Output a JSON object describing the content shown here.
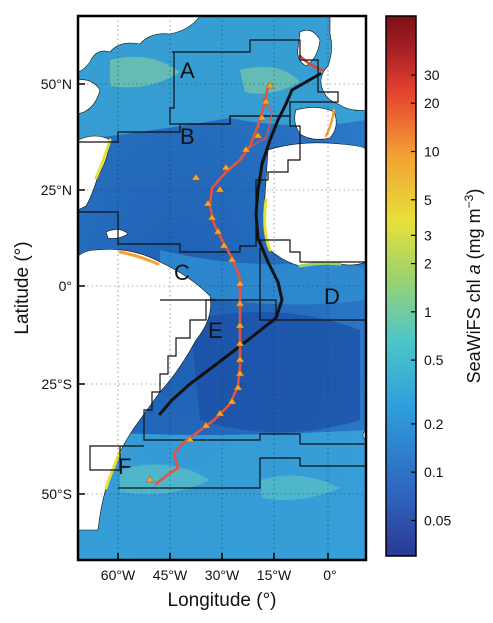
{
  "figure": {
    "xlabel": "Longitude (°)",
    "ylabel": "Latitude (°)",
    "x_ticks": [
      "60°W",
      "45°W",
      "30°W",
      "15°W",
      "0°"
    ],
    "y_ticks": [
      "50°N",
      "25°N",
      "0°",
      "25°S",
      "50°S"
    ],
    "regions": [
      "A",
      "B",
      "C",
      "D",
      "E",
      "F"
    ],
    "colorbar": {
      "label_prefix": "SeaWiFS chl ",
      "label_var": "a",
      "label_units": " (mg m",
      "label_exp": "−3",
      "label_close": ")",
      "ticks": [
        "30",
        "20",
        "10",
        "5",
        "3",
        "2",
        "1",
        "0.5",
        "0.2",
        "0.1",
        "0.05"
      ],
      "tick_values": [
        30,
        20,
        10,
        5,
        3,
        2,
        1,
        0.5,
        0.2,
        0.1,
        0.05
      ],
      "range": [
        0.03,
        70
      ],
      "scale": "log",
      "colors": [
        "#2a3a94",
        "#2f66c0",
        "#2fa0dc",
        "#4ec6c8",
        "#9fd36a",
        "#e7e03a",
        "#f3a234",
        "#e5412f",
        "#a51f24",
        "#7a1116"
      ]
    },
    "map_extent": {
      "lon": [
        -72,
        12
      ],
      "lat": [
        -68,
        72
      ]
    },
    "ocean_color": "#1f66b8",
    "track_colors": {
      "red_track": "#e8533f",
      "black_track": "#111111",
      "stations": "#f5a623"
    }
  }
}
